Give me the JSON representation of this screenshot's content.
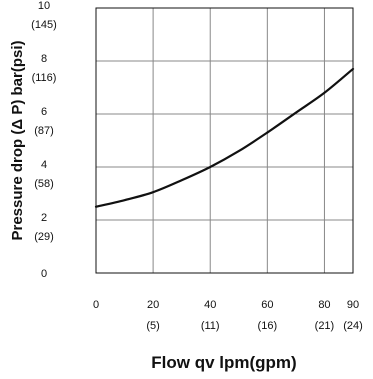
{
  "chart_data": {
    "type": "line",
    "xlabel": "Flow qv  lpm(gpm)",
    "ylabel": "Pressure drop (Δ P) bar(psi)",
    "xlim": [
      0,
      90
    ],
    "ylim": [
      0,
      10
    ],
    "grid": true,
    "x_ticks": [
      {
        "value": 0,
        "label": "0",
        "sub": ""
      },
      {
        "value": 20,
        "label": "20",
        "sub": "(5)"
      },
      {
        "value": 40,
        "label": "40",
        "sub": "(11)"
      },
      {
        "value": 60,
        "label": "60",
        "sub": "(16)"
      },
      {
        "value": 80,
        "label": "80",
        "sub": "(21)"
      },
      {
        "value": 90,
        "label": "90",
        "sub": "(24)"
      }
    ],
    "y_ticks": [
      {
        "value": 0,
        "label": "0",
        "sub": ""
      },
      {
        "value": 2,
        "label": "2",
        "sub": "(29)"
      },
      {
        "value": 4,
        "label": "4",
        "sub": "(58)"
      },
      {
        "value": 6,
        "label": "6",
        "sub": "(87)"
      },
      {
        "value": 8,
        "label": "8",
        "sub": "(116)"
      },
      {
        "value": 10,
        "label": "10",
        "sub": "(145)"
      }
    ],
    "series": [
      {
        "color": "#111111",
        "x": [
          0,
          10,
          20,
          30,
          40,
          50,
          60,
          70,
          80,
          90
        ],
        "y": [
          2.5,
          2.75,
          3.05,
          3.5,
          4.0,
          4.6,
          5.3,
          6.05,
          6.8,
          7.7
        ]
      }
    ]
  }
}
